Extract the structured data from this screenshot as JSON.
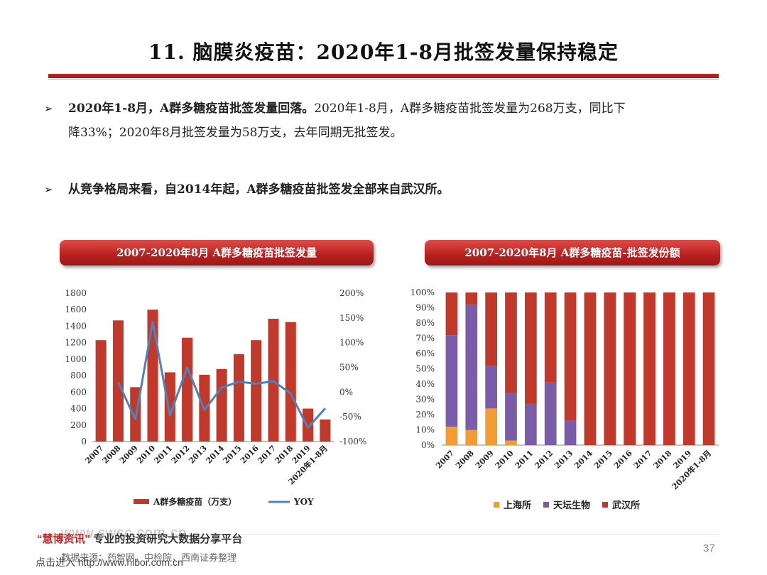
{
  "title": "11. 脑膜炎疫苗：2020年1-8月批签发量保持稳定",
  "bullets": [
    {
      "bold": "2020年1-8月，A群多糖疫苗批签发量回落。",
      "text_line1": "2020年1-8月，A群多糖疫苗批签发量为268万支，同比下",
      "text_line2": "降33%；2020年8月批签发量为58万支，去年同期无批签发。"
    },
    {
      "bold": "从竞争格局来看，自2014年起，A群多糖疫苗批签发全部来自武汉所。"
    }
  ],
  "chart_data": [
    {
      "type": "bar",
      "title": "2007-2020年8月 A群多糖疫苗批签发量",
      "categories": [
        "2007",
        "2008",
        "2009",
        "2010",
        "2011",
        "2012",
        "2013",
        "2014",
        "2015",
        "2016",
        "2017",
        "2018",
        "2019",
        "2020年1-8月"
      ],
      "series": [
        {
          "name": "A群多糖疫苗（万支）",
          "kind": "bar",
          "axis": "left",
          "color": "#c0392b",
          "values": [
            1230,
            1470,
            660,
            1600,
            840,
            1260,
            810,
            880,
            1060,
            1230,
            1490,
            1450,
            400,
            268
          ]
        },
        {
          "name": "YOY",
          "kind": "line",
          "axis": "right",
          "color": "#4f81bd",
          "values": [
            null,
            20,
            -55,
            142,
            -47,
            50,
            -36,
            9,
            21,
            17,
            22,
            -3,
            -72,
            -33
          ]
        }
      ],
      "ylim_left": [
        0,
        1800
      ],
      "ylim_right": [
        -100,
        200
      ],
      "yticks_left": [
        "0",
        "200",
        "400",
        "600",
        "800",
        "1000",
        "1200",
        "1400",
        "1600",
        "1800"
      ],
      "yticks_right": [
        "-100%",
        "-50%",
        "0%",
        "50%",
        "100%",
        "150%",
        "200%"
      ],
      "legend": [
        "A群多糖疫苗（万支）",
        "YOY"
      ]
    },
    {
      "type": "bar",
      "stacked": true,
      "title": "2007-2020年8月 A群多糖疫苗-批签发份额",
      "categories": [
        "2007",
        "2008",
        "2009",
        "2010",
        "2011",
        "2012",
        "2013",
        "2014",
        "2015",
        "2016",
        "2017",
        "2018",
        "2019",
        "2020年1-8月"
      ],
      "series": [
        {
          "name": "上海所",
          "color": "#f39c34",
          "values": [
            12,
            10,
            24,
            3,
            0,
            0,
            0,
            0,
            0,
            0,
            0,
            0,
            0,
            0
          ]
        },
        {
          "name": "天坛生物",
          "color": "#7b5ca8",
          "values": [
            60,
            82,
            28,
            31,
            27,
            41,
            16,
            0,
            0,
            0,
            0,
            0,
            0,
            0
          ]
        },
        {
          "name": "武汉所",
          "color": "#c0392b",
          "values": [
            28,
            8,
            48,
            66,
            73,
            59,
            84,
            100,
            100,
            100,
            100,
            100,
            100,
            100
          ]
        }
      ],
      "ylim": [
        0,
        100
      ],
      "yticks": [
        "0%",
        "10%",
        "20%",
        "30%",
        "40%",
        "50%",
        "60%",
        "70%",
        "80%",
        "90%",
        "100%"
      ],
      "legend": [
        "上海所",
        "天坛生物",
        "武汉所"
      ]
    }
  ],
  "footer": {
    "quote_open": "“",
    "brand": "慧博资讯",
    "quote_close": "”",
    "slogan": "专业的投资研究大数据分享平台",
    "url_faded": "www.swsc.com.cn",
    "source": "数据来源：药智网，中检院，西南证券整理",
    "enter": "点击进入",
    "enter_url": "http://www.hibor.com.cn",
    "page": "37"
  }
}
